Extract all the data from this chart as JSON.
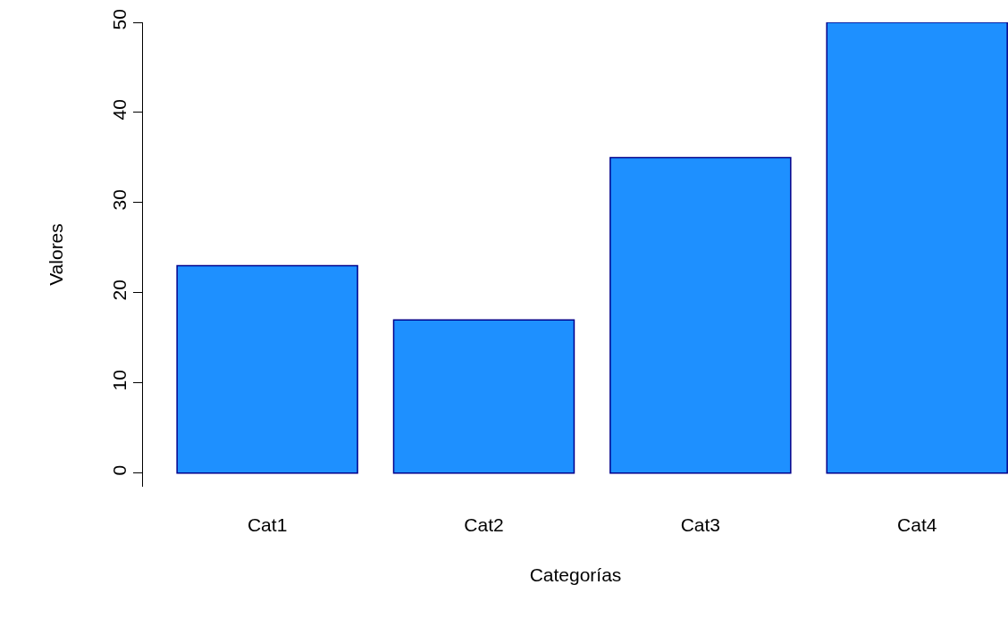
{
  "chart_data": {
    "type": "bar",
    "xlabel": "Categorías",
    "ylabel": "Valores",
    "categories": [
      "Cat1",
      "Cat2",
      "Cat3",
      "Cat4"
    ],
    "values": [
      23,
      17,
      35,
      50
    ],
    "color": "#1e90ff",
    "ylim": [
      0,
      50
    ],
    "yticks": [
      0,
      10,
      20,
      30,
      40,
      50
    ]
  }
}
